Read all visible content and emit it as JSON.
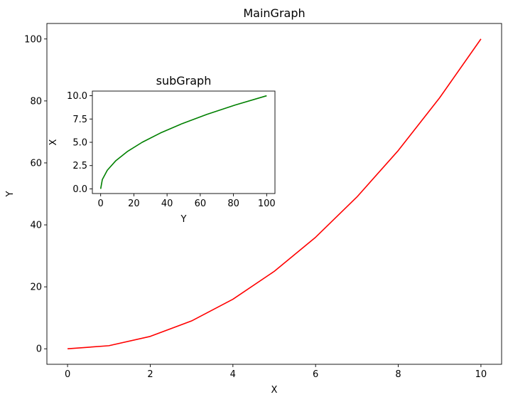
{
  "chart_data": [
    {
      "type": "line",
      "title": "MainGraph",
      "xlabel": "X",
      "ylabel": "Y",
      "xlim": [
        -0.5,
        10.5
      ],
      "ylim": [
        -5,
        105
      ],
      "xticks": [
        0,
        2,
        4,
        6,
        8,
        10
      ],
      "yticks": [
        0,
        20,
        40,
        60,
        80,
        100
      ],
      "grid": false,
      "series": [
        {
          "color": "#ff0000",
          "x": [
            0,
            1,
            2,
            3,
            4,
            5,
            6,
            7,
            8,
            9,
            10
          ],
          "y": [
            0,
            1,
            4,
            9,
            16,
            25,
            36,
            49,
            64,
            81,
            100
          ]
        }
      ]
    },
    {
      "type": "line",
      "title": "subGraph",
      "xlabel": "Y",
      "ylabel": "X",
      "xlim": [
        -5,
        105
      ],
      "ylim": [
        -0.5,
        10.5
      ],
      "xticks": [
        0,
        20,
        40,
        60,
        80,
        100
      ],
      "yticks": [
        0.0,
        2.5,
        5.0,
        7.5,
        10.0
      ],
      "ytick_labels": [
        "0.0",
        "2.5",
        "5.0",
        "7.5",
        "10.0"
      ],
      "grid": false,
      "series": [
        {
          "color": "#008000",
          "x": [
            0,
            1,
            4,
            9,
            16,
            25,
            36,
            49,
            64,
            81,
            100
          ],
          "y": [
            0,
            1,
            2,
            3,
            4,
            5,
            6,
            7,
            8,
            9,
            10
          ]
        }
      ]
    }
  ]
}
